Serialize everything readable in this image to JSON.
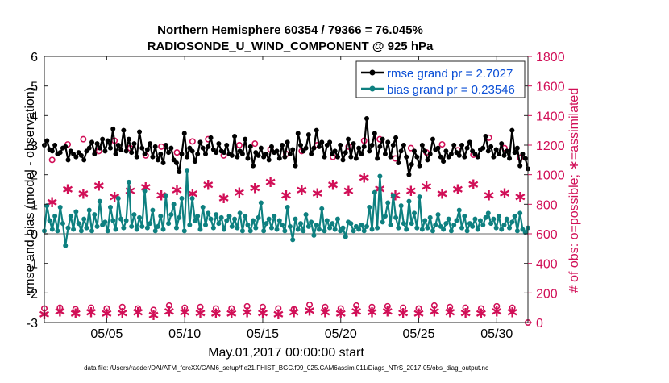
{
  "figure": {
    "title_line1": "Northern Hemisphere 60354 / 79366 = 76.045%",
    "title_line2": "RADIOSONDE_U_WIND_COMPONENT @ 925 hPa",
    "footer": "data file: /Users/raeder/DAI/ATM_forcXX/CAM6_setup/f.e21.FHIST_BGC.f09_025.CAM6assim.011/Diags_NTrS_2017-05/obs_diag_output.nc",
    "colors": {
      "rmse": "#000000",
      "bias": "#0e8080",
      "obs": "#d10f57",
      "legend_text": "#0b4fd6",
      "zero_line": "#b4b4b4"
    }
  },
  "chart_data": {
    "type": "line",
    "title": "Northern Hemisphere 60354 / 79366 = 76.045%",
    "subtitle": "RADIOSONDE_U_WIND_COMPONENT @ 925 hPa",
    "xlabel": "May.01,2017 00:00:00 start",
    "ylabel_left": "rmse and bias (model - observation)",
    "ylabel_right": "# of obs: o=possible; ∗=assimilated",
    "xlim": [
      1,
      32
    ],
    "ylim_left": [
      -3,
      6
    ],
    "ylim_right": [
      0,
      1800
    ],
    "grid": false,
    "legend_location": "top-right",
    "x_ticks": [
      5,
      10,
      15,
      20,
      25,
      30
    ],
    "x_tick_labels": [
      "05/05",
      "05/10",
      "05/15",
      "05/20",
      "05/25",
      "05/30"
    ],
    "y_ticks_left": [
      -3,
      -2,
      -1,
      0,
      1,
      2,
      3,
      4,
      5,
      6
    ],
    "y_tick_labels_left": [
      "-3",
      "-2",
      "-1",
      "0",
      "1",
      "2",
      "3",
      "4",
      "5",
      "6"
    ],
    "y_ticks_right": [
      0,
      200,
      400,
      600,
      800,
      1000,
      1200,
      1400,
      1600,
      1800
    ],
    "y_tick_labels_right": [
      "0",
      "200",
      "400",
      "600",
      "800",
      "1000",
      "1200",
      "1400",
      "1600",
      "1800"
    ],
    "series": [
      {
        "name": "rmse grand pr = 2.7027",
        "axis": "left",
        "style": "line-dot",
        "values": [
          3.0,
          3.15,
          2.85,
          2.8,
          3.0,
          2.7,
          2.75,
          2.9,
          2.95,
          2.5,
          2.8,
          2.7,
          2.6,
          2.75,
          2.65,
          2.5,
          2.8,
          2.9,
          3.1,
          2.7,
          3.05,
          2.9,
          3.2,
          2.8,
          3.15,
          2.9,
          3.55,
          2.7,
          3.0,
          2.85,
          3.5,
          2.8,
          3.2,
          2.75,
          3.05,
          2.6,
          3.45,
          2.9,
          2.7,
          2.85,
          3.05,
          2.6,
          2.95,
          2.5,
          2.7,
          2.4,
          3.0,
          2.75,
          2.9,
          2.5,
          2.4,
          2.1,
          2.7,
          3.4,
          2.6,
          2.9,
          2.8,
          2.45,
          2.7,
          3.1,
          2.9,
          2.7,
          2.95,
          3.25,
          2.85,
          2.75,
          3.05,
          2.8,
          2.75,
          3.0,
          2.7,
          2.65,
          3.3,
          2.6,
          2.8,
          2.7,
          3.2,
          2.55,
          2.95,
          2.3,
          2.75,
          2.65,
          2.9,
          2.6,
          2.7,
          2.5,
          2.95,
          2.75,
          2.8,
          2.55,
          3.0,
          2.6,
          3.1,
          2.7,
          2.85,
          2.3,
          3.4,
          3.0,
          2.8,
          2.9,
          3.35,
          2.7,
          2.9,
          3.5,
          2.95,
          3.1,
          2.6,
          3.0,
          3.1,
          2.7,
          2.8,
          2.6,
          3.0,
          2.5,
          2.75,
          3.2,
          2.6,
          3.05,
          2.55,
          2.9,
          2.7,
          2.95,
          3.9,
          2.8,
          3.0,
          3.4,
          2.55,
          2.95,
          3.2,
          2.7,
          3.1,
          2.6,
          3.0,
          3.25,
          2.4,
          2.8,
          3.0,
          2.6,
          2.0,
          2.35,
          2.8,
          2.6,
          2.3,
          3.0,
          2.8,
          2.5,
          2.7,
          3.2,
          2.85,
          2.9,
          2.6,
          2.45,
          2.8,
          2.6,
          2.7,
          3.0,
          2.75,
          2.65,
          3.0,
          2.6,
          2.9,
          3.1,
          2.8,
          2.7,
          2.6,
          2.85,
          2.9,
          3.3,
          2.8,
          2.95,
          2.6,
          2.85,
          2.7,
          3.05,
          2.65,
          2.8,
          2.55,
          3.5,
          2.75,
          2.9,
          2.3,
          2.7,
          2.55,
          2.2
        ]
      },
      {
        "name": "bias grand pr = 0.23546",
        "axis": "left",
        "style": "line-dot",
        "values": [
          0.1,
          0.95,
          0.45,
          0.15,
          0.6,
          0.1,
          0.9,
          0.35,
          -0.4,
          0.2,
          0.6,
          0.15,
          0.75,
          0.35,
          0.1,
          0.5,
          0.2,
          0.8,
          0.1,
          0.65,
          0.25,
          1.1,
          0.3,
          0.4,
          0.1,
          0.9,
          0.45,
          0.15,
          1.2,
          0.5,
          0.2,
          0.45,
          1.75,
          0.25,
          0.65,
          0.15,
          0.55,
          0.25,
          1.45,
          0.2,
          0.35,
          0.8,
          0.1,
          0.25,
          0.6,
          0.15,
          1.3,
          0.35,
          0.65,
          1.0,
          0.2,
          0.55,
          1.2,
          0.1,
          2.15,
          0.3,
          1.2,
          0.45,
          0.6,
          0.15,
          0.9,
          0.3,
          0.7,
          0.5,
          0.2,
          0.65,
          0.35,
          0.55,
          0.15,
          0.45,
          0.6,
          0.25,
          0.5,
          0.2,
          0.7,
          0.1,
          0.6,
          0.3,
          0.1,
          0.45,
          0.2,
          0.55,
          1.05,
          0.1,
          0.35,
          0.5,
          0.2,
          0.6,
          0.15,
          0.45,
          0.3,
          0.1,
          0.9,
          0.25,
          -0.2,
          0.5,
          0.15,
          0.35,
          0.1,
          0.65,
          0.25,
          0.4,
          -0.05,
          0.3,
          0.15,
          0.85,
          0.1,
          0.45,
          0.2,
          0.35,
          0.15,
          0.5,
          0.1,
          0.2,
          -0.1,
          0.4,
          0.35,
          0.1,
          0.25,
          0.15,
          0.3,
          0.1,
          0.25,
          0.9,
          0.15,
          1.4,
          0.2,
          1.95,
          0.4,
          0.6,
          1.05,
          0.3,
          1.3,
          0.55,
          0.2,
          0.95,
          0.35,
          0.15,
          1.1,
          0.35,
          0.7,
          0.2,
          1.25,
          0.15,
          0.45,
          0.2,
          0.55,
          0.1,
          0.3,
          0.65,
          0.25,
          0.15,
          0.35,
          0.5,
          0.1,
          0.3,
          0.45,
          0.8,
          0.2,
          0.6,
          0.1,
          0.35,
          0.25,
          0.5,
          0.15,
          0.45,
          0.3,
          0.55,
          0.7,
          0.35,
          0.5,
          0.2,
          0.6,
          0.15,
          0.3,
          0.5,
          0.2,
          0.4,
          0.6,
          0.1,
          0.7,
          0.15,
          0.05,
          0.2
        ]
      },
      {
        "name": "obs possible",
        "axis": "right",
        "style": "circle",
        "x": [
          1.5,
          2.5,
          3.5,
          4.5,
          5.5,
          6.5,
          7.5,
          8.5,
          9.5,
          10.5,
          11.5,
          12.5,
          13.5,
          14.5,
          15.5,
          16.5,
          17.5,
          18.5,
          19.5,
          20.5,
          21.5,
          22.5,
          23.5,
          24.5,
          25.5,
          26.5,
          27.5,
          28.5,
          29.5,
          30.5,
          31.5,
          1.0,
          2.0,
          3.0,
          4.0,
          5.0,
          6.0,
          7.0,
          8.0,
          9.0,
          10.0,
          11.0,
          12.0,
          13.0,
          14.0,
          15.0,
          16.0,
          17.0,
          18.0,
          19.0,
          20.0,
          21.0,
          22.0,
          23.0,
          24.0,
          25.0,
          26.0,
          27.0,
          28.0,
          29.0,
          30.0,
          31.0,
          32.0
        ],
        "values": [
          1100,
          1205,
          1240,
          1160,
          1230,
          1180,
          1130,
          1190,
          1150,
          1225,
          1240,
          1130,
          1200,
          1210,
          1170,
          1140,
          1160,
          1200,
          1120,
          1190,
          1230,
          1240,
          1110,
          1180,
          1150,
          1205,
          1165,
          1135,
          1250,
          1180,
          1115,
          95,
          100,
          90,
          100,
          95,
          105,
          95,
          85,
          115,
          100,
          105,
          95,
          95,
          110,
          105,
          95,
          90,
          120,
          105,
          95,
          115,
          105,
          110,
          100,
          95,
          115,
          105,
          100,
          95,
          110,
          100,
          0
        ]
      },
      {
        "name": "obs assimilated",
        "axis": "right",
        "style": "asterisk",
        "x": [
          1.5,
          2.5,
          3.5,
          4.5,
          5.5,
          6.5,
          7.5,
          8.5,
          9.5,
          10.5,
          11.5,
          12.5,
          13.5,
          14.5,
          15.5,
          16.5,
          17.5,
          18.5,
          19.5,
          20.5,
          21.5,
          22.5,
          23.5,
          24.5,
          25.5,
          26.5,
          27.5,
          28.5,
          29.5,
          30.5,
          31.5,
          1.0,
          2.0,
          3.0,
          4.0,
          5.0,
          6.0,
          7.0,
          8.0,
          9.0,
          10.0,
          11.0,
          12.0,
          13.0,
          14.0,
          15.0,
          16.0,
          17.0,
          18.0,
          19.0,
          20.0,
          21.0,
          22.0,
          23.0,
          24.0,
          25.0,
          26.0,
          27.0,
          28.0,
          29.0,
          30.0,
          31.0
        ],
        "values": [
          825,
          910,
          880,
          935,
          860,
          900,
          925,
          870,
          905,
          880,
          940,
          850,
          890,
          920,
          960,
          870,
          905,
          885,
          940,
          900,
          990,
          915,
          870,
          900,
          930,
          880,
          910,
          945,
          870,
          885,
          860,
          65,
          85,
          70,
          80,
          70,
          75,
          80,
          60,
          85,
          80,
          75,
          70,
          70,
          80,
          75,
          65,
          80,
          90,
          80,
          70,
          85,
          80,
          85,
          75,
          70,
          85,
          80,
          75,
          70,
          85,
          80
        ]
      }
    ]
  }
}
